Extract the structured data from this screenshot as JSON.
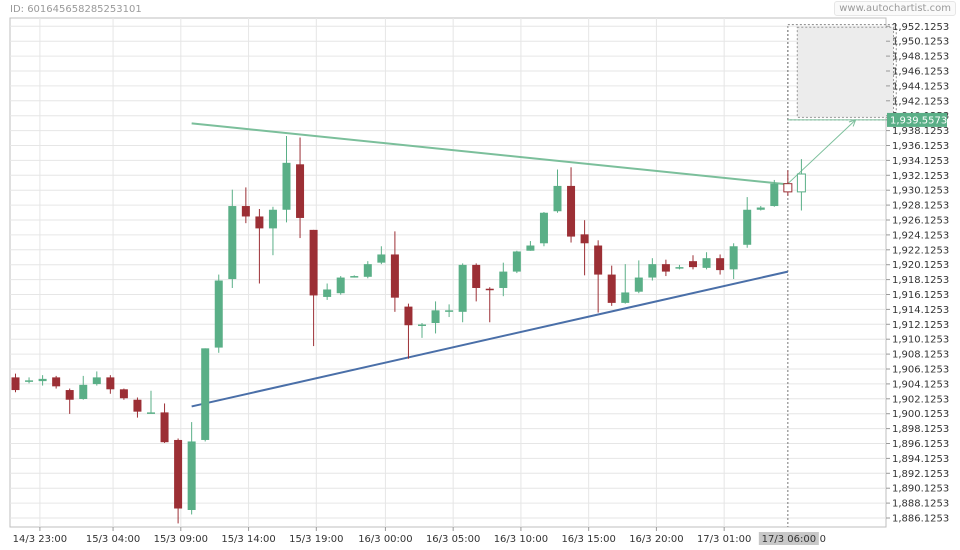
{
  "header": {
    "id_label": "ID: 601645658285253101",
    "brand": "www.autochartist.com"
  },
  "colors": {
    "bull": "#5aaf87",
    "bear": "#9c2f35",
    "resistance": "#7bbf9b",
    "support": "#4a6fa8",
    "forecast": "#7bbf9b",
    "current_tag": "#5aaf87",
    "time_tag": "#c8c8c8",
    "grid": "#e6e6e6"
  },
  "chart_data": {
    "type": "candlestick",
    "title": "",
    "xlabel": "",
    "ylabel": "",
    "grid": true,
    "ylim": [
      1885.1253,
      1952.8
    ],
    "y_ticks": [
      "1,952.1253",
      "1,950.1253",
      "1,948.1253",
      "1,946.1253",
      "1,944.1253",
      "1,942.1253",
      "1,940.1253",
      "1,938.1253",
      "1,936.1253",
      "1,934.1253",
      "1,932.1253",
      "1,930.1253",
      "1,928.1253",
      "1,926.1253",
      "1,924.1253",
      "1,922.1253",
      "1,920.1253",
      "1,918.1253",
      "1,916.1253",
      "1,914.1253",
      "1,912.1253",
      "1,910.1253",
      "1,908.1253",
      "1,906.1253",
      "1,904.1253",
      "1,902.1253",
      "1,900.1253",
      "1,898.1253",
      "1,896.1253",
      "1,894.1253",
      "1,892.1253",
      "1,890.1253",
      "1,888.1253",
      "1,886.1253"
    ],
    "x_ticks": [
      {
        "i": 1.8,
        "label": "14/3 23:00"
      },
      {
        "i": 7.2,
        "label": "15/3 04:00"
      },
      {
        "i": 12.2,
        "label": "15/3 09:00"
      },
      {
        "i": 17.2,
        "label": "15/3 14:00"
      },
      {
        "i": 22.2,
        "label": "15/3 19:00"
      },
      {
        "i": 27.3,
        "label": "16/3 00:00"
      },
      {
        "i": 32.3,
        "label": "16/3 05:00"
      },
      {
        "i": 37.3,
        "label": "16/3 10:00"
      },
      {
        "i": 42.3,
        "label": "16/3 15:00"
      },
      {
        "i": 47.3,
        "label": "16/3 20:00"
      },
      {
        "i": 52.3,
        "label": "17/3 01:00"
      }
    ],
    "current_time_label": "17/3 06:00",
    "current_time_suffix": "0",
    "current_price_label": "1,939.5573",
    "candles": [
      {
        "o": 1905.0,
        "h": 1905.5,
        "l": 1903.0,
        "c": 1903.3
      },
      {
        "o": 1904.6,
        "h": 1905.0,
        "l": 1904.2,
        "c": 1904.6
      },
      {
        "o": 1904.5,
        "h": 1905.3,
        "l": 1903.9,
        "c": 1904.8
      },
      {
        "o": 1905.0,
        "h": 1905.2,
        "l": 1903.5,
        "c": 1903.8
      },
      {
        "o": 1903.3,
        "h": 1903.5,
        "l": 1900.1,
        "c": 1902.0
      },
      {
        "o": 1902.1,
        "h": 1905.2,
        "l": 1902.0,
        "c": 1904.0
      },
      {
        "o": 1904.1,
        "h": 1905.8,
        "l": 1903.9,
        "c": 1905.0
      },
      {
        "o": 1905.0,
        "h": 1905.3,
        "l": 1902.8,
        "c": 1903.4
      },
      {
        "o": 1903.4,
        "h": 1903.5,
        "l": 1902.0,
        "c": 1902.2
      },
      {
        "o": 1902.0,
        "h": 1902.3,
        "l": 1899.6,
        "c": 1900.4
      },
      {
        "o": 1900.3,
        "h": 1903.2,
        "l": 1900.2,
        "c": 1900.3
      },
      {
        "o": 1900.3,
        "h": 1901.5,
        "l": 1896.2,
        "c": 1896.3
      },
      {
        "o": 1896.6,
        "h": 1896.8,
        "l": 1885.4,
        "c": 1887.4
      },
      {
        "o": 1887.2,
        "h": 1899.0,
        "l": 1886.6,
        "c": 1896.4
      },
      {
        "o": 1896.6,
        "h": 1908.9,
        "l": 1896.4,
        "c": 1908.9
      },
      {
        "o": 1909.0,
        "h": 1918.8,
        "l": 1908.3,
        "c": 1918.0
      },
      {
        "o": 1918.2,
        "h": 1930.2,
        "l": 1917.0,
        "c": 1928.0
      },
      {
        "o": 1928.0,
        "h": 1930.5,
        "l": 1925.7,
        "c": 1926.6
      },
      {
        "o": 1926.6,
        "h": 1927.6,
        "l": 1917.6,
        "c": 1925.0
      },
      {
        "o": 1925.0,
        "h": 1927.9,
        "l": 1921.4,
        "c": 1927.5
      },
      {
        "o": 1927.5,
        "h": 1937.4,
        "l": 1925.8,
        "c": 1933.8
      },
      {
        "o": 1933.6,
        "h": 1937.2,
        "l": 1923.7,
        "c": 1926.4
      },
      {
        "o": 1924.8,
        "h": 1924.8,
        "l": 1909.2,
        "c": 1916.0
      },
      {
        "o": 1915.8,
        "h": 1917.6,
        "l": 1915.4,
        "c": 1916.8
      },
      {
        "o": 1916.3,
        "h": 1918.6,
        "l": 1916.1,
        "c": 1918.4
      },
      {
        "o": 1918.6,
        "h": 1918.7,
        "l": 1918.4,
        "c": 1918.6
      },
      {
        "o": 1918.5,
        "h": 1920.6,
        "l": 1918.3,
        "c": 1920.2
      },
      {
        "o": 1920.4,
        "h": 1922.6,
        "l": 1920.2,
        "c": 1921.5
      },
      {
        "o": 1921.5,
        "h": 1924.6,
        "l": 1913.8,
        "c": 1915.7
      },
      {
        "o": 1914.5,
        "h": 1914.9,
        "l": 1907.5,
        "c": 1912.0
      },
      {
        "o": 1911.9,
        "h": 1912.3,
        "l": 1910.3,
        "c": 1912.1
      },
      {
        "o": 1912.3,
        "h": 1915.2,
        "l": 1910.9,
        "c": 1914.0
      },
      {
        "o": 1913.9,
        "h": 1914.8,
        "l": 1913.1,
        "c": 1914.0
      },
      {
        "o": 1913.8,
        "h": 1920.3,
        "l": 1912.4,
        "c": 1920.1
      },
      {
        "o": 1920.1,
        "h": 1920.3,
        "l": 1915.2,
        "c": 1917.0
      },
      {
        "o": 1916.9,
        "h": 1917.1,
        "l": 1912.4,
        "c": 1916.8
      },
      {
        "o": 1917.0,
        "h": 1920.4,
        "l": 1915.9,
        "c": 1919.2
      },
      {
        "o": 1919.2,
        "h": 1922.0,
        "l": 1919.0,
        "c": 1921.9
      },
      {
        "o": 1922.0,
        "h": 1923.3,
        "l": 1922.0,
        "c": 1922.7
      },
      {
        "o": 1923.0,
        "h": 1927.2,
        "l": 1922.6,
        "c": 1927.1
      },
      {
        "o": 1927.3,
        "h": 1932.9,
        "l": 1927.1,
        "c": 1930.7
      },
      {
        "o": 1930.7,
        "h": 1933.2,
        "l": 1923.1,
        "c": 1923.9
      },
      {
        "o": 1924.2,
        "h": 1926.1,
        "l": 1918.7,
        "c": 1923.0
      },
      {
        "o": 1922.7,
        "h": 1923.4,
        "l": 1913.7,
        "c": 1918.8
      },
      {
        "o": 1918.8,
        "h": 1920.0,
        "l": 1914.6,
        "c": 1915.0
      },
      {
        "o": 1915.0,
        "h": 1920.2,
        "l": 1914.9,
        "c": 1916.4
      },
      {
        "o": 1916.5,
        "h": 1920.7,
        "l": 1916.3,
        "c": 1918.4
      },
      {
        "o": 1918.4,
        "h": 1921.0,
        "l": 1918.0,
        "c": 1920.2
      },
      {
        "o": 1920.2,
        "h": 1920.8,
        "l": 1918.6,
        "c": 1919.2
      },
      {
        "o": 1919.6,
        "h": 1920.1,
        "l": 1919.5,
        "c": 1919.8
      },
      {
        "o": 1920.6,
        "h": 1921.4,
        "l": 1919.5,
        "c": 1919.8
      },
      {
        "o": 1919.7,
        "h": 1921.8,
        "l": 1919.5,
        "c": 1921.0
      },
      {
        "o": 1921.0,
        "h": 1921.5,
        "l": 1918.8,
        "c": 1919.4
      },
      {
        "o": 1919.5,
        "h": 1923.0,
        "l": 1918.2,
        "c": 1922.6
      },
      {
        "o": 1922.8,
        "h": 1929.2,
        "l": 1922.4,
        "c": 1927.5
      },
      {
        "o": 1927.5,
        "h": 1928.0,
        "l": 1927.4,
        "c": 1927.8
      },
      {
        "o": 1928.0,
        "h": 1931.5,
        "l": 1927.9,
        "c": 1931.0
      }
    ],
    "forecast_candles": [
      {
        "o": 1931.0,
        "h": 1932.8,
        "l": 1929.4,
        "c": 1929.9
      },
      {
        "o": 1929.9,
        "h": 1934.3,
        "l": 1927.4,
        "c": 1932.3
      }
    ],
    "resistance_line": [
      {
        "i": 13.0,
        "y": 1939.1
      },
      {
        "i": 57.0,
        "y": 1930.9
      }
    ],
    "support_line": [
      {
        "i": 13.0,
        "y": 1901.1
      },
      {
        "i": 57.0,
        "y": 1919.2
      }
    ],
    "forecast_arrow": [
      {
        "i": 57.0,
        "y": 1931.0
      },
      {
        "i": 62.0,
        "y": 1939.56
      }
    ],
    "target_zone": {
      "i0": 57.0,
      "i1": 65.0,
      "y0": 1939.56,
      "y1": 1952.35
    },
    "target_zone_solid": {
      "i0": 57.4,
      "i1": 64.8,
      "y0": 1939.9,
      "y1": 1952.0
    }
  }
}
